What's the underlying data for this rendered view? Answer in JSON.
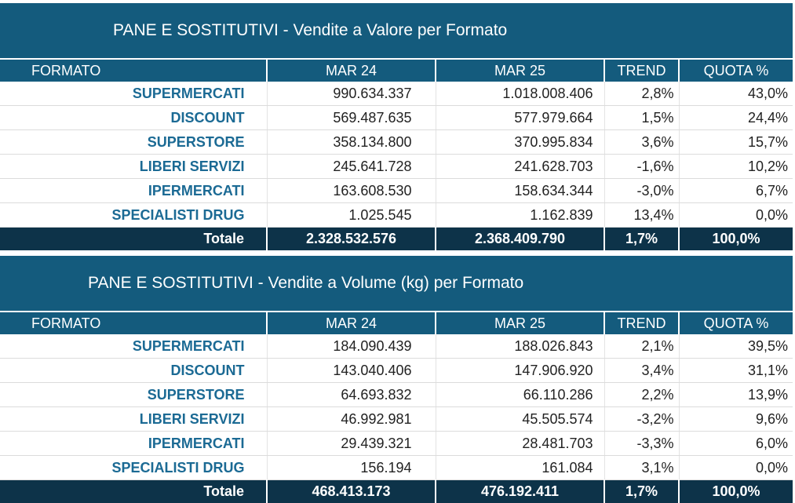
{
  "tables": [
    {
      "title": "PANE E SOSTITUTIVI - Vendite a Valore per Formato",
      "headers": [
        "FORMATO",
        "MAR 24",
        "MAR 25",
        "TREND",
        "QUOTA %"
      ],
      "rows": [
        [
          "SUPERMERCATI",
          "990.634.337",
          "1.018.008.406",
          "2,8%",
          "43,0%"
        ],
        [
          "DISCOUNT",
          "569.487.635",
          "577.979.664",
          "1,5%",
          "24,4%"
        ],
        [
          "SUPERSTORE",
          "358.134.800",
          "370.995.834",
          "3,6%",
          "15,7%"
        ],
        [
          "LIBERI SERVIZI",
          "245.641.728",
          "241.628.703",
          "-1,6%",
          "10,2%"
        ],
        [
          "IPERMERCATI",
          "163.608.530",
          "158.634.344",
          "-3,0%",
          "6,7%"
        ],
        [
          "SPECIALISTI DRUG",
          "1.025.545",
          "1.162.839",
          "13,4%",
          "0,0%"
        ]
      ],
      "total": [
        "Totale",
        "2.328.532.576",
        "2.368.409.790",
        "1,7%",
        "100,0%"
      ]
    },
    {
      "title": "PANE E SOSTITUTIVI - Vendite a Volume (kg) per Formato",
      "headers": [
        "FORMATO",
        "MAR 24",
        "MAR 25",
        "TREND",
        "QUOTA %"
      ],
      "rows": [
        [
          "SUPERMERCATI",
          "184.090.439",
          "188.026.843",
          "2,1%",
          "39,5%"
        ],
        [
          "DISCOUNT",
          "143.040.406",
          "147.906.920",
          "3,4%",
          "31,1%"
        ],
        [
          "SUPERSTORE",
          "64.693.832",
          "66.110.286",
          "2,2%",
          "13,9%"
        ],
        [
          "LIBERI SERVIZI",
          "46.992.981",
          "45.505.574",
          "-3,2%",
          "9,6%"
        ],
        [
          "IPERMERCATI",
          "29.439.321",
          "28.481.703",
          "-3,3%",
          "6,0%"
        ],
        [
          "SPECIALISTI DRUG",
          "156.194",
          "161.084",
          "3,1%",
          "0,0%"
        ]
      ],
      "total": [
        "Totale",
        "468.413.173",
        "476.192.411",
        "1,7%",
        "100,0%"
      ]
    }
  ],
  "colors": {
    "header_bg": "#145B7D",
    "total_bg": "#0D3349",
    "format_text": "#1B6A94"
  }
}
